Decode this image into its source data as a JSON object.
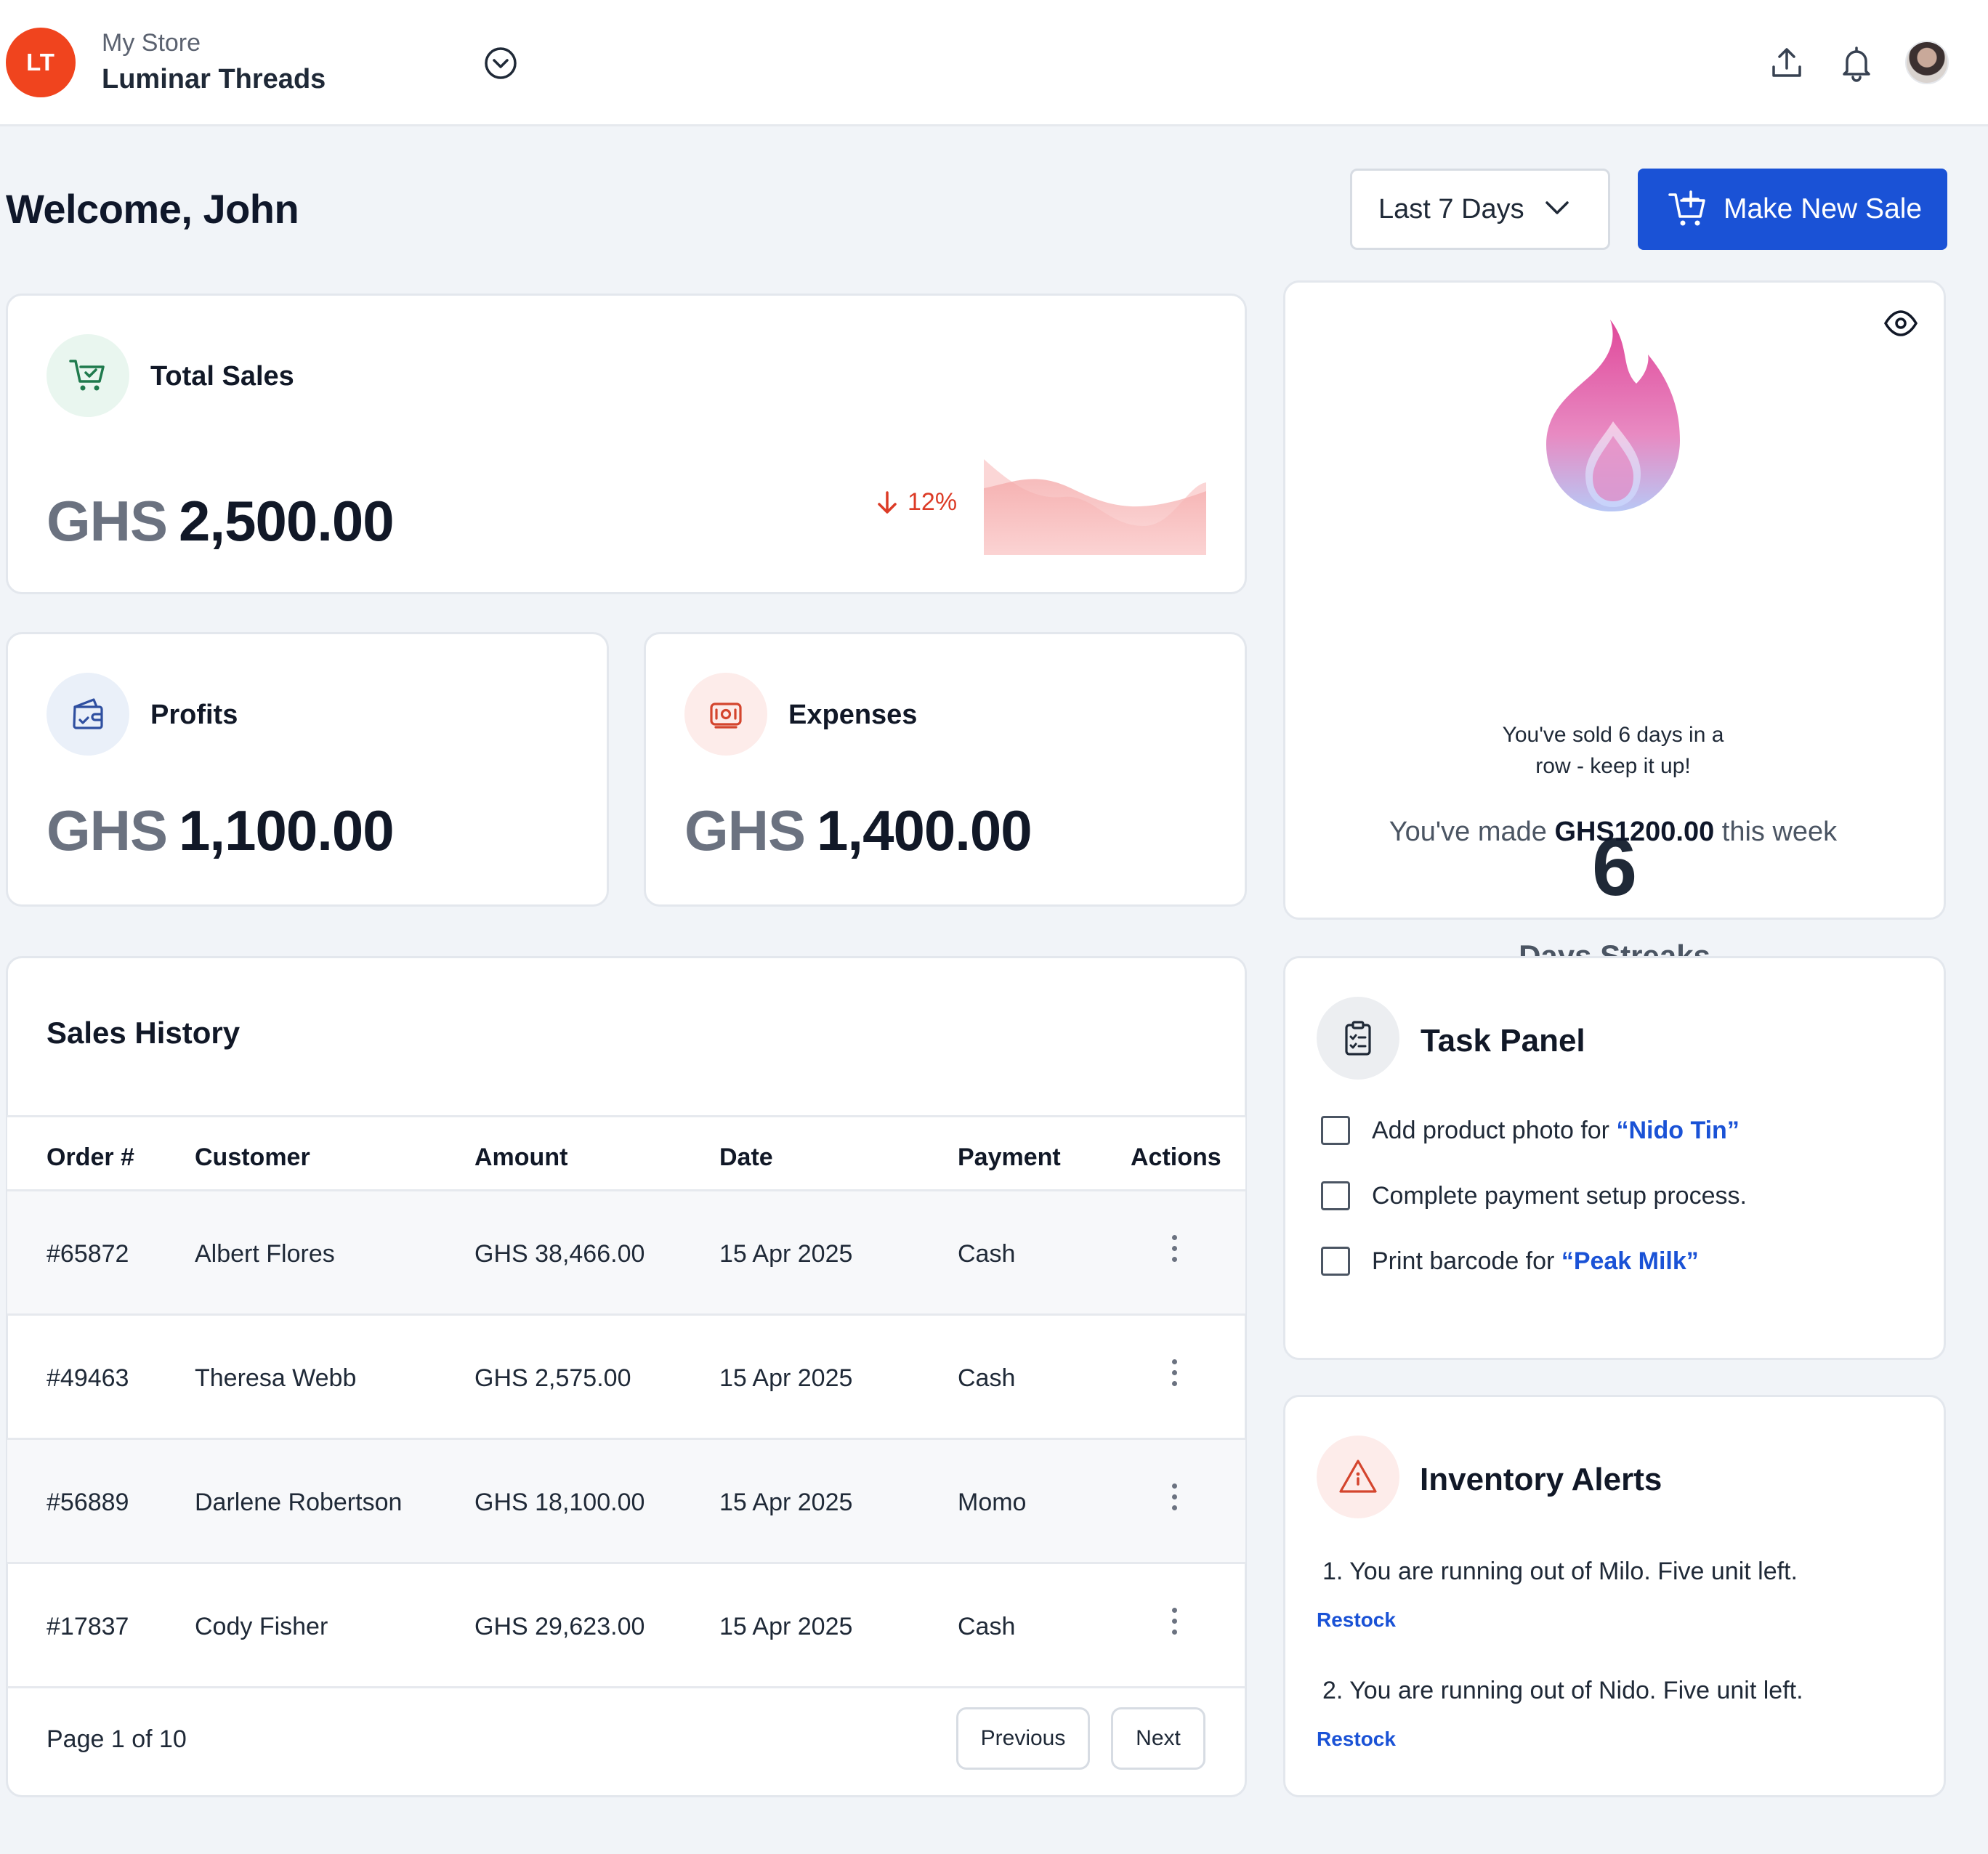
{
  "store": {
    "initials": "LT",
    "label": "My Store",
    "name": "Luminar Threads"
  },
  "header": {
    "welcome": "Welcome, John",
    "range": "Last 7 Days",
    "new_sale": "Make New Sale"
  },
  "total_sales": {
    "title": "Total Sales",
    "currency": "GHS",
    "amount": "2,500.00",
    "trend": "12%",
    "trend_direction": "down"
  },
  "profits": {
    "title": "Profits",
    "currency": "GHS",
    "amount": "1,100.00"
  },
  "expenses": {
    "title": "Expenses",
    "currency": "GHS",
    "amount": "1,400.00"
  },
  "streak": {
    "count": "6",
    "label": "Days Streaks",
    "description": "You've sold 6 days in a row - keep it up!",
    "week_prefix": "You've made",
    "week_amount": "GHS1200.00",
    "week_suffix": "this week"
  },
  "sales_history": {
    "title": "Sales History",
    "columns": [
      "Order #",
      "Customer",
      "Amount",
      "Date",
      "Payment",
      "Actions"
    ],
    "rows": [
      {
        "order": "#65872",
        "customer": "Albert Flores",
        "amount": "GHS 38,466.00",
        "date": "15 Apr 2025",
        "payment": "Cash"
      },
      {
        "order": "#49463",
        "customer": "Theresa Webb",
        "amount": "GHS 2,575.00",
        "date": "15 Apr 2025",
        "payment": "Cash"
      },
      {
        "order": "#56889",
        "customer": "Darlene Robertson",
        "amount": "GHS 18,100.00",
        "date": "15 Apr 2025",
        "payment": "Momo"
      },
      {
        "order": "#17837",
        "customer": "Cody Fisher",
        "amount": "GHS 29,623.00",
        "date": "15 Apr 2025",
        "payment": "Cash"
      }
    ],
    "page_info": "Page 1 of 10",
    "prev": "Previous",
    "next": "Next"
  },
  "tasks": {
    "title": "Task Panel",
    "items": [
      {
        "prefix": "Add product photo for",
        "highlight": "“Nido Tin”"
      },
      {
        "prefix": "Complete payment setup process.",
        "highlight": ""
      },
      {
        "prefix": "Print barcode for",
        "highlight": "“Peak Milk”"
      }
    ]
  },
  "inventory": {
    "title": "Inventory Alerts",
    "alerts": [
      {
        "text": "1. You are running out of Milo. Five unit left.",
        "action": "Restock"
      },
      {
        "text": "2. You are running out of Nido. Five unit left.",
        "action": "Restock"
      }
    ]
  },
  "colors": {
    "accent": "#1a52d6",
    "store_badge": "#f0441e",
    "trend_down": "#dc3b26",
    "fire_top": "#e0489a",
    "fire_bottom": "#b8c7f5"
  },
  "icons": [
    "chevron-circle-down-icon",
    "upload-icon",
    "bell-icon",
    "cart-check-icon",
    "wallet-icon",
    "cash-icon",
    "eye-icon",
    "fire-icon",
    "clipboard-icon",
    "alert-triangle-icon",
    "kebab-icon"
  ]
}
